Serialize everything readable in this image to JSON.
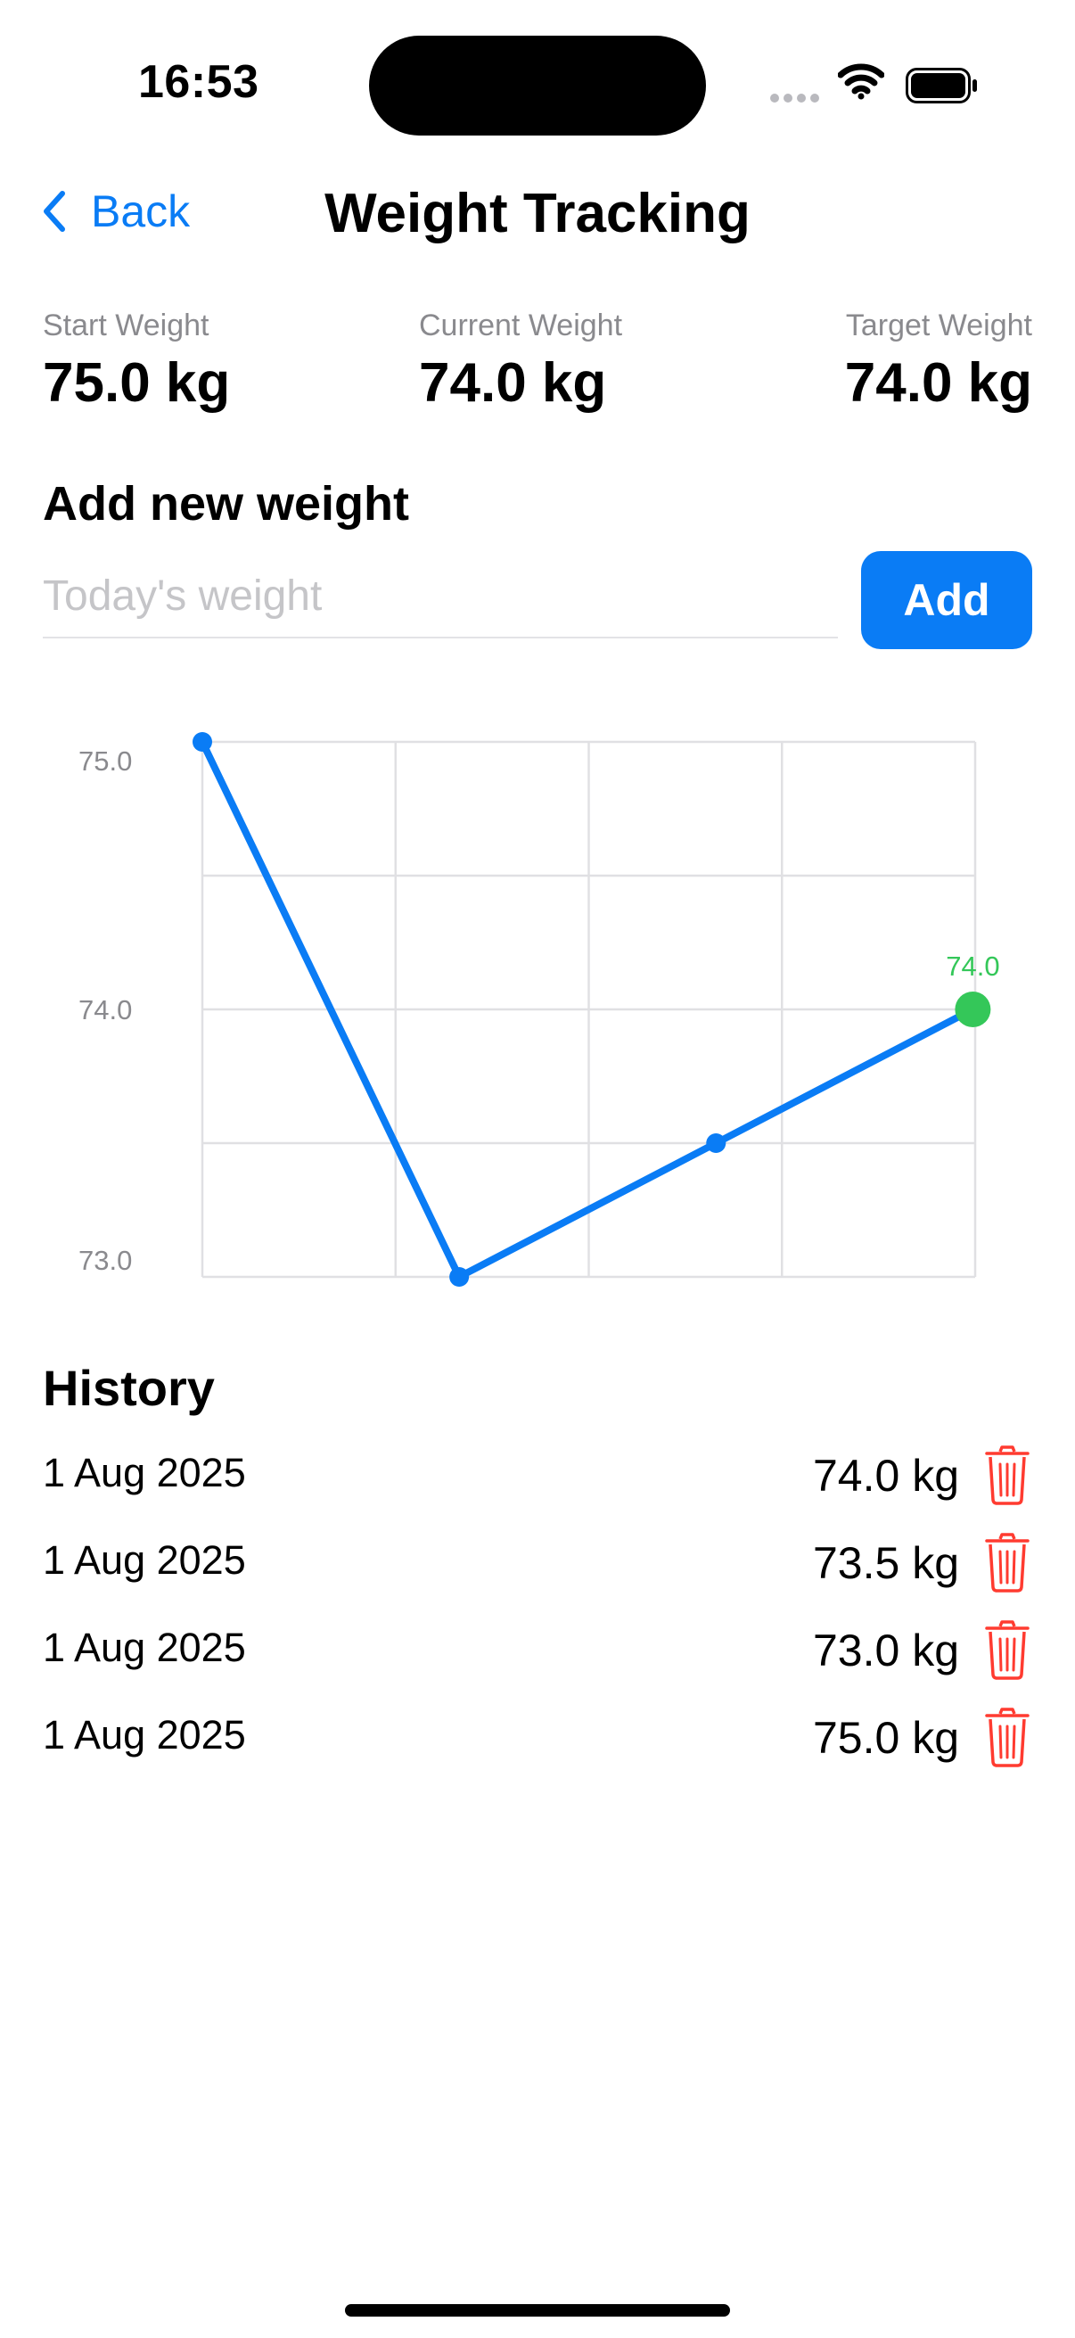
{
  "status_bar": {
    "time": "16:53"
  },
  "nav": {
    "back_label": "Back",
    "title": "Weight Tracking"
  },
  "stats": {
    "start": {
      "label": "Start Weight",
      "value": "75.0 kg"
    },
    "current": {
      "label": "Current Weight",
      "value": "74.0 kg"
    },
    "target": {
      "label": "Target Weight",
      "value": "74.0 kg"
    }
  },
  "add": {
    "heading": "Add new weight",
    "placeholder": "Today's weight",
    "button_label": "Add"
  },
  "colors": {
    "accent": "#0a7cf5",
    "highlight": "#34c759",
    "delete": "#ff3b30",
    "grid": "#e0e0e3",
    "axis_text": "#8a8a8e"
  },
  "chart_data": {
    "type": "line",
    "x": [
      1,
      2,
      3,
      4
    ],
    "values": [
      75.0,
      73.0,
      73.5,
      74.0
    ],
    "ylim": [
      73.0,
      75.0
    ],
    "yticks": [
      75.0,
      74.0,
      73.0
    ],
    "ytick_labels": [
      "75.0",
      "74.0",
      "73.0"
    ],
    "highlight_index": 3,
    "highlight_label": "74.0",
    "grid": true,
    "title": "",
    "xlabel": "",
    "ylabel": ""
  },
  "history": {
    "heading": "History",
    "entries": [
      {
        "date": "1 Aug 2025",
        "weight": "74.0 kg"
      },
      {
        "date": "1 Aug 2025",
        "weight": "73.5 kg"
      },
      {
        "date": "1 Aug 2025",
        "weight": "73.0 kg"
      },
      {
        "date": "1 Aug 2025",
        "weight": "75.0 kg"
      }
    ]
  }
}
